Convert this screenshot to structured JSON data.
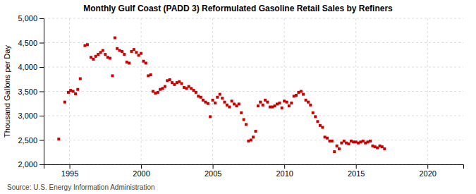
{
  "chart_data": {
    "type": "scatter",
    "title": "Monthly Gulf Coast (PADD 3) Reformulated Gasoline Retail Sales by Refiners",
    "ylabel": "Thousand Gallons per Day",
    "annotations": [
      "Source: U.S. Energy Information Administration"
    ],
    "color": "#CC0000",
    "marker": "square",
    "grid": true,
    "xlim": [
      1993.2,
      2022.5
    ],
    "xticks": [
      1995,
      2000,
      2005,
      2010,
      2015,
      2020
    ],
    "ylim": [
      2000,
      5000
    ],
    "yticks": [
      {
        "value": 2000,
        "label": "2,000"
      },
      {
        "value": 2500,
        "label": "2,500"
      },
      {
        "value": 3000,
        "label": "3,000"
      },
      {
        "value": 3500,
        "label": "3,500"
      },
      {
        "value": 4000,
        "label": "4,000"
      },
      {
        "value": 4500,
        "label": "4,500"
      },
      {
        "value": 5000,
        "label": "5,000"
      }
    ],
    "x": [
      1994.25,
      1994.67,
      1994.92,
      1995.08,
      1995.25,
      1995.42,
      1995.58,
      1995.75,
      1996.08,
      1996.25,
      1996.5,
      1996.67,
      1996.83,
      1997.0,
      1997.17,
      1997.33,
      1997.5,
      1997.67,
      1997.83,
      1998.0,
      1998.17,
      1998.33,
      1998.5,
      1998.67,
      1998.83,
      1999.0,
      1999.17,
      1999.33,
      1999.5,
      1999.67,
      1999.83,
      2000.0,
      2000.17,
      2000.33,
      2000.5,
      2000.67,
      2000.83,
      2001.0,
      2001.17,
      2001.33,
      2001.5,
      2001.67,
      2001.83,
      2002.0,
      2002.17,
      2002.33,
      2002.5,
      2002.67,
      2002.83,
      2003.0,
      2003.17,
      2003.33,
      2003.5,
      2003.67,
      2003.83,
      2004.0,
      2004.17,
      2004.33,
      2004.5,
      2004.67,
      2004.83,
      2005.0,
      2005.17,
      2005.33,
      2005.5,
      2005.67,
      2005.83,
      2006.0,
      2006.17,
      2006.33,
      2006.5,
      2006.67,
      2006.83,
      2007.0,
      2007.17,
      2007.33,
      2007.5,
      2007.67,
      2007.83,
      2008.0,
      2008.17,
      2008.33,
      2008.5,
      2008.67,
      2008.83,
      2009.0,
      2009.17,
      2009.33,
      2009.5,
      2009.67,
      2009.83,
      2010.0,
      2010.17,
      2010.33,
      2010.5,
      2010.67,
      2010.83,
      2011.0,
      2011.17,
      2011.33,
      2011.5,
      2011.67,
      2011.83,
      2012.0,
      2012.17,
      2012.33,
      2012.5,
      2012.67,
      2012.83,
      2013.0,
      2013.17,
      2013.33,
      2013.5,
      2013.67,
      2013.83,
      2014.0,
      2014.17,
      2014.33,
      2014.5,
      2014.67,
      2014.83,
      2015.0,
      2015.17,
      2015.33,
      2015.5,
      2015.67,
      2015.83,
      2016.0,
      2016.17,
      2016.33,
      2016.5,
      2016.67,
      2016.83,
      2017.0
    ],
    "values": [
      2520,
      3280,
      3480,
      3520,
      3500,
      3450,
      3540,
      3760,
      4440,
      4460,
      4200,
      4160,
      4220,
      4260,
      4300,
      4340,
      4260,
      4200,
      4180,
      3820,
      4600,
      4380,
      4340,
      4320,
      4260,
      4100,
      4080,
      4320,
      4360,
      4300,
      4240,
      4280,
      4120,
      4080,
      3820,
      3840,
      3500,
      3460,
      3480,
      3540,
      3560,
      3600,
      3720,
      3740,
      3680,
      3640,
      3680,
      3700,
      3660,
      3580,
      3560,
      3600,
      3560,
      3520,
      3480,
      3400,
      3380,
      3320,
      3280,
      3250,
      2980,
      3320,
      3260,
      3380,
      3440,
      3360,
      3280,
      3220,
      3180,
      3300,
      3240,
      3200,
      3240,
      3060,
      2920,
      2820,
      2480,
      2500,
      2560,
      2680,
      3200,
      3280,
      3220,
      3320,
      3280,
      3180,
      3180,
      3200,
      3240,
      3260,
      3160,
      3300,
      3280,
      3200,
      3260,
      3400,
      3420,
      3480,
      3500,
      3440,
      3320,
      3280,
      3220,
      3060,
      2980,
      2880,
      2800,
      2760,
      2560,
      2540,
      2480,
      2480,
      2260,
      2380,
      2320,
      2440,
      2480,
      2440,
      2420,
      2480,
      2460,
      2460,
      2440,
      2460,
      2480,
      2440,
      2460,
      2480,
      2380,
      2360,
      2340,
      2380,
      2360,
      2320
    ]
  }
}
